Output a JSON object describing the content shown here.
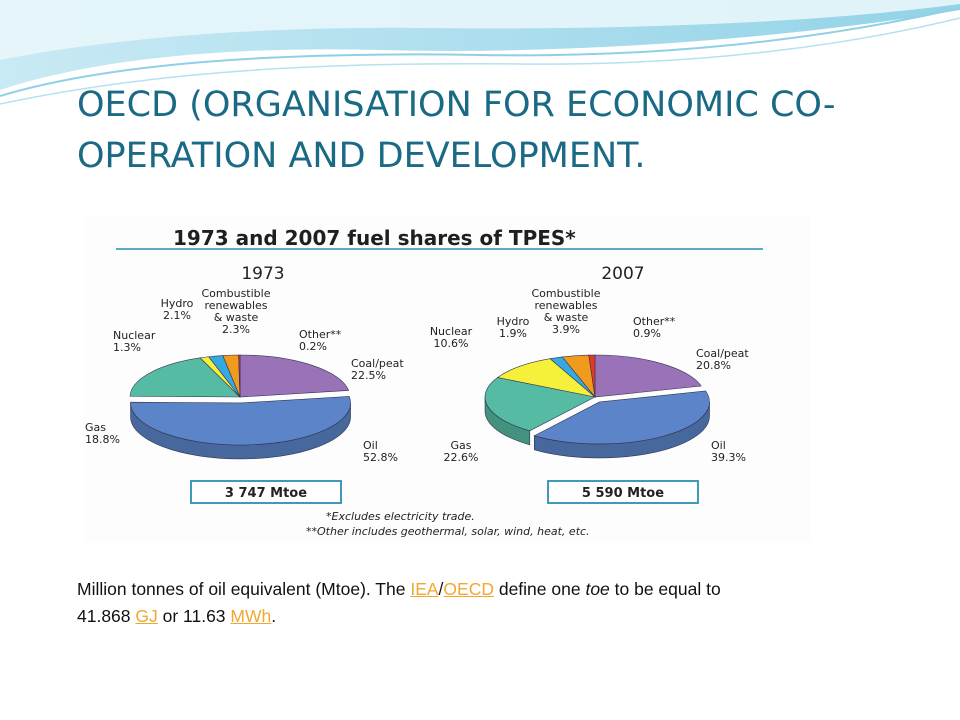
{
  "slide": {
    "title": "OECD (ORGANISATION FOR ECONOMIC CO-OPERATION AND DEVELOPMENT.",
    "note": {
      "part1": "Million tonnes of oil equivalent (Mtoe). The ",
      "link_iea": "IEA",
      "sep": "/",
      "link_oecd": "OECD",
      "part2": " define one ",
      "toe": "toe",
      "part3": " to be equal to 41.868 ",
      "link_gj": "GJ",
      "part4": " or 11.63 ",
      "link_mwh": "MWh",
      "part5": "."
    },
    "colors": {
      "title": "#1a6a86",
      "link": "#f0a830"
    }
  },
  "chart_data": {
    "type": "pie",
    "title": "1973 and 2007 fuel shares of TPES*",
    "footnotes": [
      "*Excludes electricity trade.",
      "**Other includes geothermal, solar, wind, heat, etc."
    ],
    "colors": {
      "Oil": "#5b85c8",
      "Gas": "#55bba2",
      "Coal/peat": "#9a72b8",
      "Nuclear": "#f5f03a",
      "Hydro": "#36a9e0",
      "Combustible renewables & waste": "#f09a1e",
      "Other**": "#e03a22"
    },
    "charts": [
      {
        "year": "1973",
        "total": "3 747 Mtoe",
        "slices": [
          {
            "name": "Coal/peat",
            "value": 22.5,
            "label": [
              "Coal/peat",
              "22.5%"
            ]
          },
          {
            "name": "Oil",
            "value": 52.8,
            "label": [
              "Oil",
              "52.8%"
            ]
          },
          {
            "name": "Gas",
            "value": 18.8,
            "label": [
              "Gas",
              "18.8%"
            ]
          },
          {
            "name": "Nuclear",
            "value": 1.3,
            "label": [
              "Nuclear",
              "1.3%"
            ]
          },
          {
            "name": "Hydro",
            "value": 2.1,
            "label": [
              "Hydro",
              "2.1%"
            ]
          },
          {
            "name": "Combustible renewables & waste",
            "value": 2.3,
            "label": [
              "Combustible",
              "renewables",
              "& waste",
              "2.3%"
            ]
          },
          {
            "name": "Other**",
            "value": 0.2,
            "label": [
              "Other**",
              "0.2%"
            ]
          }
        ]
      },
      {
        "year": "2007",
        "total": "5 590 Mtoe",
        "slices": [
          {
            "name": "Coal/peat",
            "value": 20.8,
            "label": [
              "Coal/peat",
              "20.8%"
            ]
          },
          {
            "name": "Oil",
            "value": 39.3,
            "label": [
              "Oil",
              "39.3%"
            ]
          },
          {
            "name": "Gas",
            "value": 22.6,
            "label": [
              "Gas",
              "22.6%"
            ]
          },
          {
            "name": "Nuclear",
            "value": 10.6,
            "label": [
              "Nuclear",
              "10.6%"
            ]
          },
          {
            "name": "Hydro",
            "value": 1.9,
            "label": [
              "Hydro",
              "1.9%"
            ]
          },
          {
            "name": "Combustible renewables & waste",
            "value": 3.9,
            "label": [
              "Combustible",
              "renewables",
              "& waste",
              "3.9%"
            ]
          },
          {
            "name": "Other**",
            "value": 0.9,
            "label": [
              "Other**",
              "0.9%"
            ]
          }
        ]
      }
    ]
  }
}
